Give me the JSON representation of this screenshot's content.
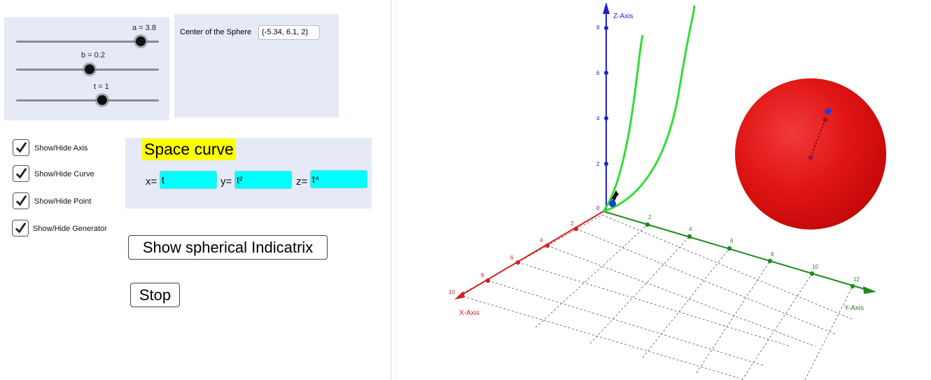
{
  "sliders": [
    {
      "label": "a = 3.8",
      "value": 3.8,
      "fraction": 0.86
    },
    {
      "label": "b = 0.2",
      "value": 0.2,
      "fraction": 0.51
    },
    {
      "label": "t = 1",
      "value": 1,
      "fraction": 0.6
    }
  ],
  "sphere_center": {
    "label": "Center of the Sphere",
    "value": "(-5.34, 6.1, 2)"
  },
  "checkboxes": [
    {
      "label": "Show/Hide Axis",
      "checked": true
    },
    {
      "label": "Show/Hide Curve",
      "checked": true
    },
    {
      "label": "Show/Hide Point",
      "checked": true
    },
    {
      "label": "Show/Hide Generator",
      "checked": true
    }
  ],
  "curve_panel": {
    "title": "Space curve",
    "x_label": "x=",
    "x_value": "t",
    "y_label": "y=",
    "y_value": "t²",
    "z_label": "z=",
    "z_value": "t⁴"
  },
  "buttons": {
    "indicatrix": "Show spherical Indicatrix",
    "stop": "Stop"
  },
  "graphics3d": {
    "x_axis_label": "X-Axis",
    "y_axis_label": "Y-Axis",
    "z_axis_label": "Z-Axis",
    "origin_label": "0",
    "x_ticks": [
      "2",
      "4",
      "6",
      "8",
      "10"
    ],
    "y_ticks": [
      "2",
      "4",
      "6",
      "8",
      "10",
      "12"
    ],
    "z_ticks": [
      "2",
      "4",
      "6",
      "8"
    ],
    "colors": {
      "x_axis": "#d62020",
      "y_axis": "#1e8a1e",
      "z_axis": "#2020d0",
      "curve": "#33dd33",
      "sphere": "#e01010",
      "panel_bg": "#e6e9f6",
      "highlight": "#ffff00",
      "field": "#00ffff"
    }
  }
}
